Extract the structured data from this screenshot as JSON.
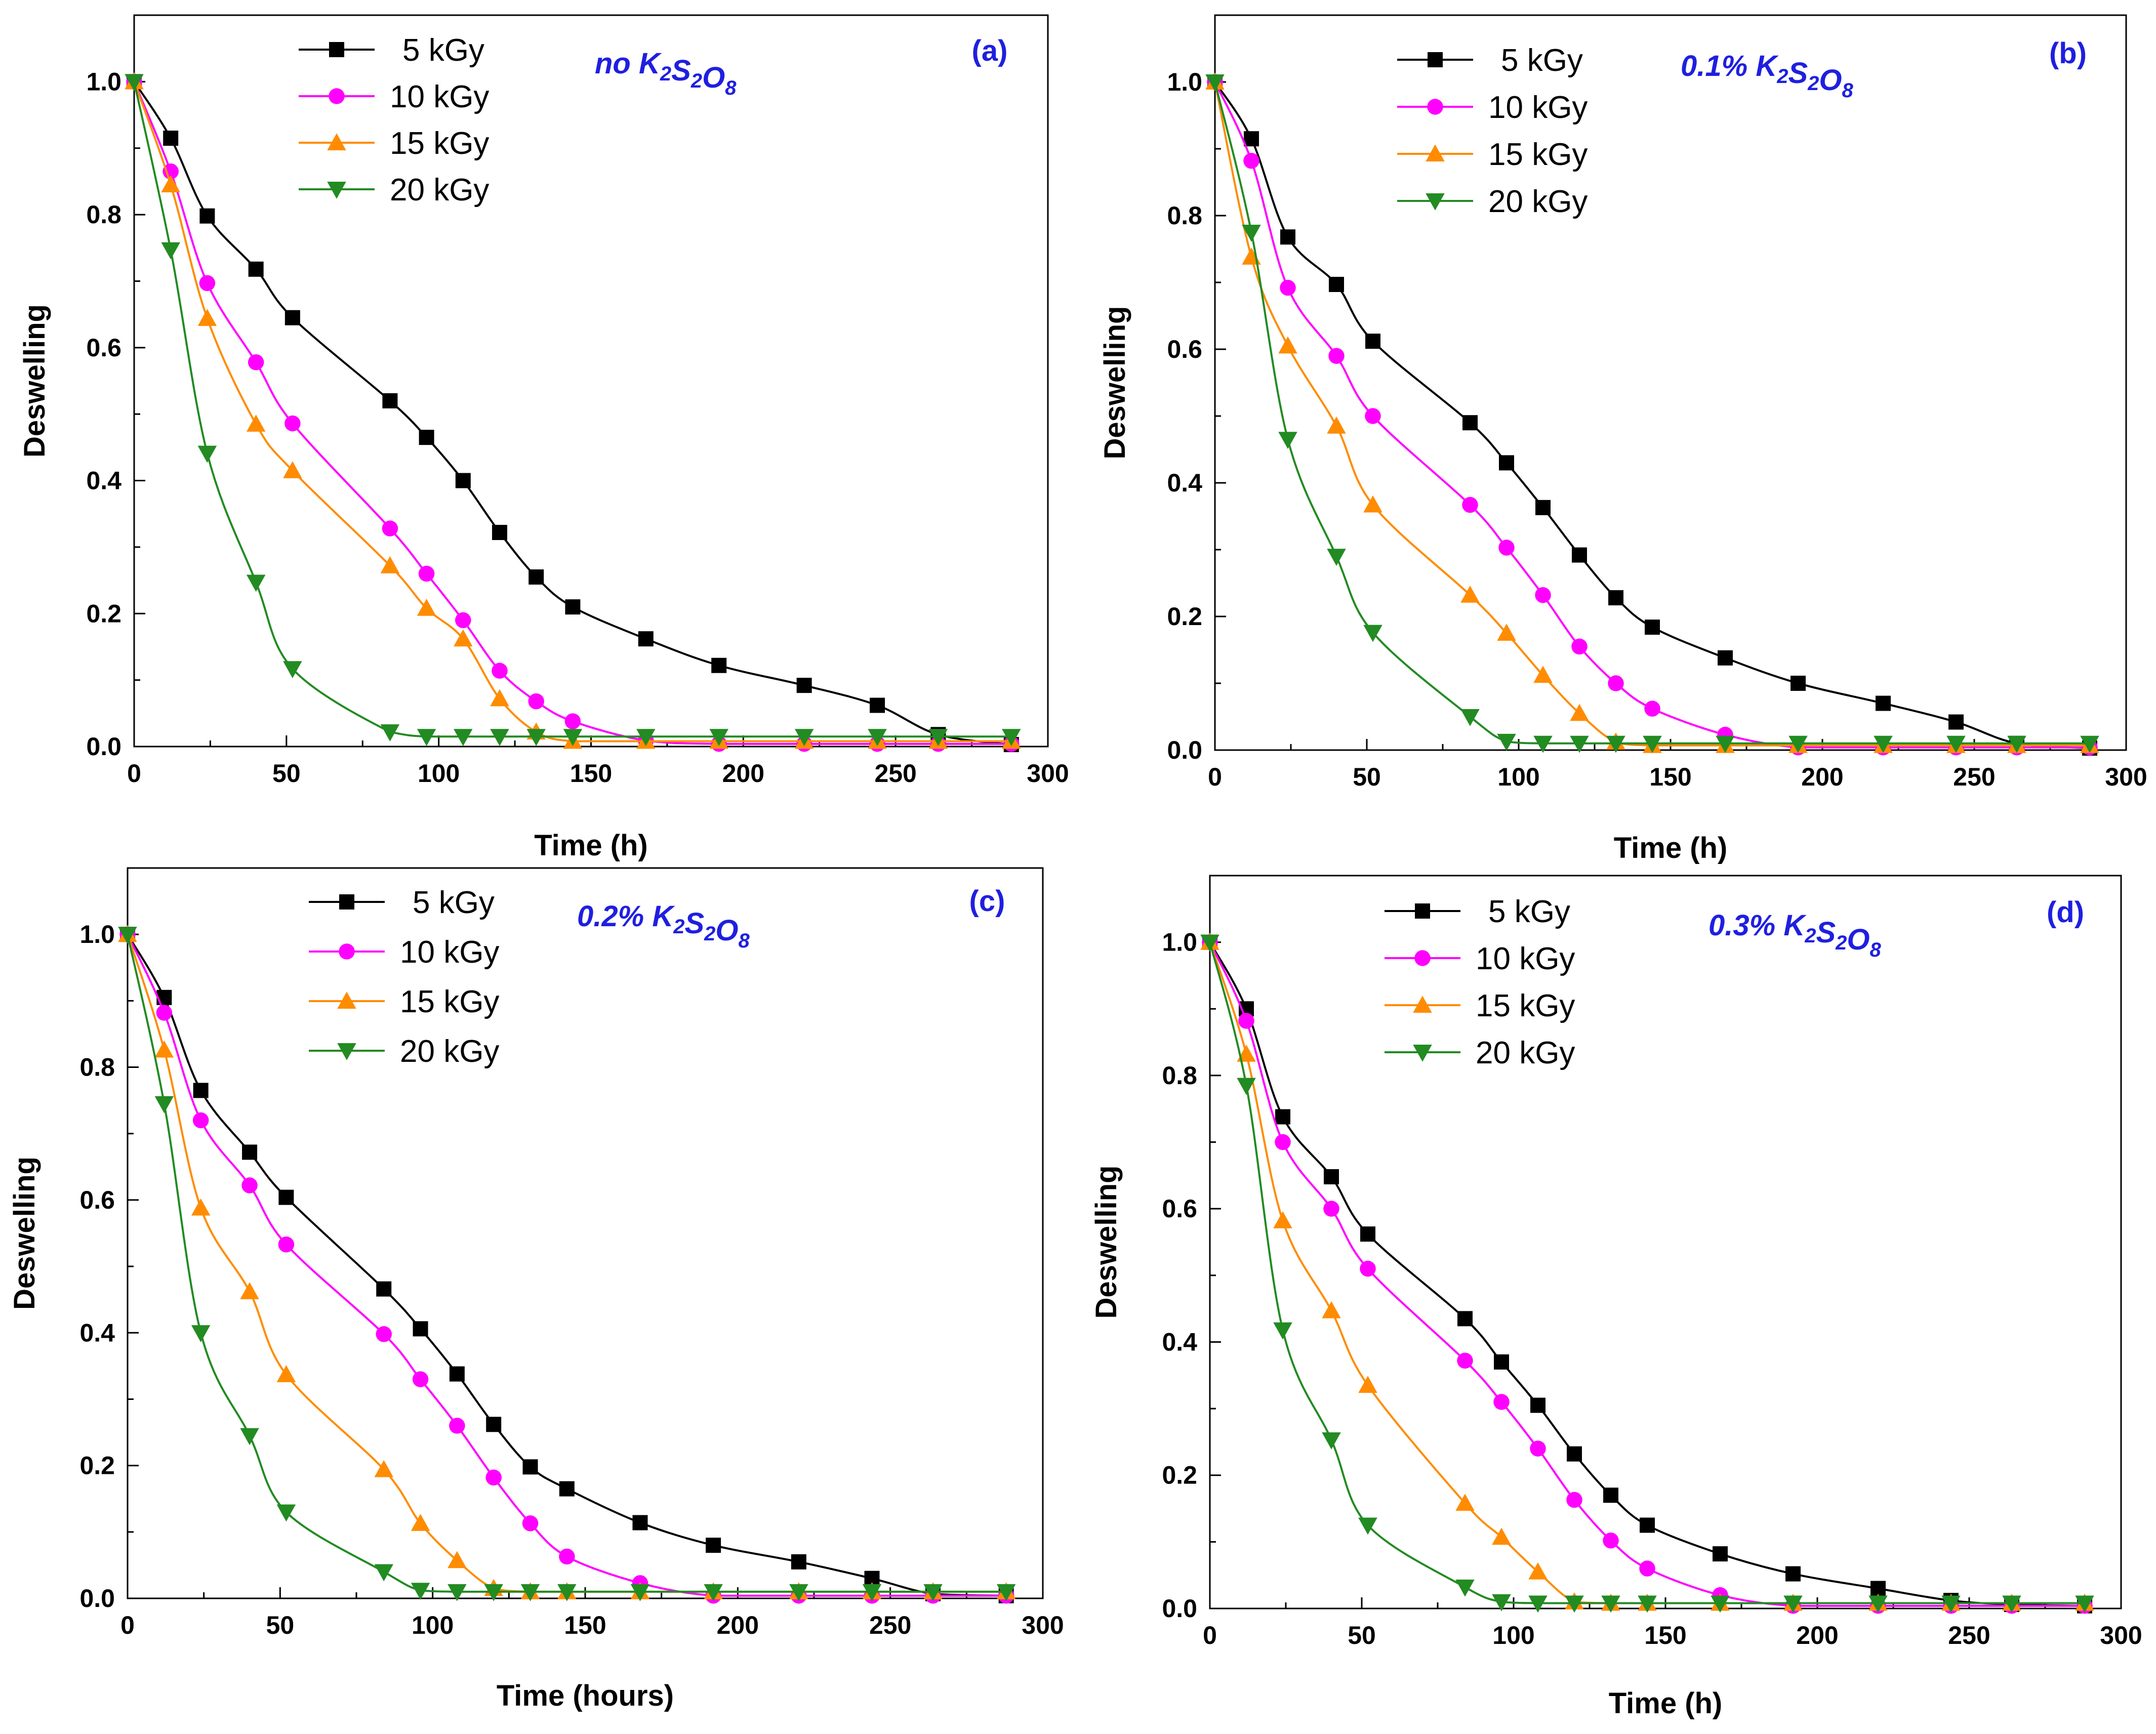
{
  "chart_data": [
    {
      "type": "line",
      "panel_label": "(a)",
      "annotation": {
        "prefix": "no ",
        "parts": [
          [
            "K",
            "2"
          ],
          [
            "S",
            "2"
          ],
          [
            "O",
            "8"
          ]
        ]
      },
      "xlabel": "Time (h)",
      "ylabel": "Deswelling",
      "xlim": [
        0,
        300
      ],
      "ylim": [
        0,
        1.1
      ],
      "xticks": [
        0,
        50,
        100,
        150,
        200,
        250,
        300
      ],
      "yticks": [
        0.0,
        0.2,
        0.4,
        0.6,
        0.8,
        1.0
      ],
      "xtick_labels": [
        "0",
        "50",
        "100",
        "150",
        "200",
        "250",
        "300"
      ],
      "ytick_labels": [
        "0.0",
        "0.2",
        "0.4",
        "0.6",
        "0.8",
        "1.0"
      ],
      "legend_position": "top-left",
      "x": [
        0,
        12,
        24,
        40,
        52,
        84,
        96,
        108,
        120,
        132,
        144,
        168,
        192,
        220,
        244,
        264,
        288
      ],
      "series": [
        {
          "name": "5 kGy",
          "color": "#000000",
          "marker": "square",
          "values": [
            1.0,
            0.915,
            0.798,
            0.718,
            0.645,
            0.52,
            0.465,
            0.4,
            0.322,
            0.255,
            0.21,
            0.162,
            0.122,
            0.092,
            0.062,
            0.018,
            0.003
          ]
        },
        {
          "name": "10 kGy",
          "color": "#ff00ff",
          "marker": "circle",
          "values": [
            1.0,
            0.865,
            0.697,
            0.578,
            0.486,
            0.328,
            0.26,
            0.19,
            0.114,
            0.068,
            0.038,
            0.009,
            0.004,
            0.004,
            0.004,
            0.004,
            0.004
          ]
        },
        {
          "name": "15 kGy",
          "color": "#ff8c00",
          "marker": "triangle-up",
          "values": [
            1.0,
            0.845,
            0.644,
            0.485,
            0.415,
            0.272,
            0.208,
            0.162,
            0.072,
            0.022,
            0.008,
            0.008,
            0.008,
            0.008,
            0.008,
            0.008,
            0.008
          ]
        },
        {
          "name": "20 kGy",
          "color": "#228b22",
          "marker": "triangle-down",
          "values": [
            1.0,
            0.747,
            0.441,
            0.247,
            0.117,
            0.022,
            0.015,
            0.015,
            0.015,
            0.015,
            0.015,
            0.015,
            0.015,
            0.015,
            0.015,
            0.015,
            0.015
          ]
        }
      ]
    },
    {
      "type": "line",
      "panel_label": "(b)",
      "annotation": {
        "prefix": "0.1% ",
        "parts": [
          [
            "K",
            "2"
          ],
          [
            "S",
            "2"
          ],
          [
            "O",
            "8"
          ]
        ]
      },
      "xlabel": "Time (h)",
      "ylabel": "Deswelling",
      "xlim": [
        0,
        300
      ],
      "ylim": [
        0,
        1.1
      ],
      "xticks": [
        0,
        50,
        100,
        150,
        200,
        250,
        300
      ],
      "yticks": [
        0.0,
        0.2,
        0.4,
        0.6,
        0.8,
        1.0
      ],
      "xtick_labels": [
        "0",
        "50",
        "100",
        "150",
        "200",
        "250",
        "300"
      ],
      "ytick_labels": [
        "0.0",
        "0.2",
        "0.4",
        "0.6",
        "0.8",
        "1.0"
      ],
      "legend_position": "top-left",
      "x": [
        0,
        12,
        24,
        40,
        52,
        84,
        96,
        108,
        120,
        132,
        144,
        168,
        192,
        220,
        244,
        264,
        288
      ],
      "series": [
        {
          "name": "5 kGy",
          "color": "#000000",
          "marker": "square",
          "values": [
            1.0,
            0.915,
            0.768,
            0.697,
            0.612,
            0.49,
            0.43,
            0.363,
            0.292,
            0.228,
            0.184,
            0.138,
            0.1,
            0.07,
            0.042,
            0.01,
            0.003
          ]
        },
        {
          "name": "10 kGy",
          "color": "#ff00ff",
          "marker": "circle",
          "values": [
            1.0,
            0.882,
            0.692,
            0.59,
            0.5,
            0.367,
            0.303,
            0.232,
            0.155,
            0.1,
            0.062,
            0.023,
            0.004,
            0.004,
            0.004,
            0.004,
            0.004
          ]
        },
        {
          "name": "15 kGy",
          "color": "#ff8c00",
          "marker": "triangle-up",
          "values": [
            1.0,
            0.738,
            0.605,
            0.485,
            0.367,
            0.232,
            0.175,
            0.112,
            0.055,
            0.012,
            0.007,
            0.007,
            0.007,
            0.007,
            0.007,
            0.007,
            0.007
          ]
        },
        {
          "name": "20 kGy",
          "color": "#228b22",
          "marker": "triangle-down",
          "values": [
            1.0,
            0.775,
            0.465,
            0.29,
            0.176,
            0.05,
            0.013,
            0.01,
            0.01,
            0.01,
            0.01,
            0.01,
            0.01,
            0.01,
            0.01,
            0.01,
            0.01
          ]
        }
      ]
    },
    {
      "type": "line",
      "panel_label": "(c)",
      "annotation": {
        "prefix": "0.2% ",
        "parts": [
          [
            "K",
            "2"
          ],
          [
            "S",
            "2"
          ],
          [
            "O",
            "8"
          ]
        ]
      },
      "xlabel": "Time (hours)",
      "ylabel": "Deswelling",
      "xlim": [
        0,
        300
      ],
      "ylim": [
        0,
        1.1
      ],
      "xticks": [
        0,
        50,
        100,
        150,
        200,
        250,
        300
      ],
      "yticks": [
        0.0,
        0.2,
        0.4,
        0.6,
        0.8,
        1.0
      ],
      "xtick_labels": [
        "0",
        "50",
        "100",
        "150",
        "200",
        "250",
        "300"
      ],
      "ytick_labels": [
        "0.0",
        "0.2",
        "0.4",
        "0.6",
        "0.8",
        "1.0"
      ],
      "legend_position": "top-left",
      "x": [
        0,
        12,
        24,
        40,
        52,
        84,
        96,
        108,
        120,
        132,
        144,
        168,
        192,
        220,
        244,
        264,
        288
      ],
      "series": [
        {
          "name": "5 kGy",
          "color": "#000000",
          "marker": "square",
          "values": [
            1.0,
            0.905,
            0.765,
            0.672,
            0.604,
            0.466,
            0.406,
            0.338,
            0.262,
            0.198,
            0.165,
            0.114,
            0.08,
            0.055,
            0.03,
            0.007,
            0.004
          ]
        },
        {
          "name": "10 kGy",
          "color": "#ff00ff",
          "marker": "circle",
          "values": [
            1.0,
            0.882,
            0.72,
            0.622,
            0.533,
            0.398,
            0.33,
            0.26,
            0.182,
            0.113,
            0.063,
            0.023,
            0.004,
            0.004,
            0.004,
            0.004,
            0.004
          ]
        },
        {
          "name": "15 kGy",
          "color": "#ff8c00",
          "marker": "triangle-up",
          "values": [
            1.0,
            0.826,
            0.588,
            0.462,
            0.337,
            0.194,
            0.113,
            0.057,
            0.015,
            0.01,
            0.01,
            0.01,
            0.01,
            0.01,
            0.01,
            0.01,
            0.01
          ]
        },
        {
          "name": "20 kGy",
          "color": "#228b22",
          "marker": "triangle-down",
          "values": [
            1.0,
            0.745,
            0.4,
            0.245,
            0.13,
            0.04,
            0.012,
            0.01,
            0.01,
            0.01,
            0.01,
            0.01,
            0.01,
            0.01,
            0.01,
            0.01,
            0.01
          ]
        }
      ]
    },
    {
      "type": "line",
      "panel_label": "(d)",
      "annotation": {
        "prefix": "0.3% ",
        "parts": [
          [
            "K",
            "2"
          ],
          [
            "S",
            "2"
          ],
          [
            "O",
            "8"
          ]
        ]
      },
      "xlabel": "Time (h)",
      "ylabel": "Deswelling",
      "xlim": [
        0,
        300
      ],
      "ylim": [
        0,
        1.1
      ],
      "xticks": [
        0,
        50,
        100,
        150,
        200,
        250,
        300
      ],
      "yticks": [
        0.0,
        0.2,
        0.4,
        0.6,
        0.8,
        1.0
      ],
      "xtick_labels": [
        "0",
        "50",
        "100",
        "150",
        "200",
        "250",
        "300"
      ],
      "ytick_labels": [
        "0.0",
        "0.2",
        "0.4",
        "0.6",
        "0.8",
        "1.0"
      ],
      "legend_position": "top-left",
      "x": [
        0,
        12,
        24,
        40,
        52,
        84,
        96,
        108,
        120,
        132,
        144,
        168,
        192,
        220,
        244,
        264,
        288
      ],
      "series": [
        {
          "name": "5 kGy",
          "color": "#000000",
          "marker": "square",
          "values": [
            1.0,
            0.9,
            0.738,
            0.648,
            0.562,
            0.435,
            0.37,
            0.305,
            0.232,
            0.17,
            0.125,
            0.082,
            0.052,
            0.03,
            0.012,
            0.006,
            0.004
          ]
        },
        {
          "name": "10 kGy",
          "color": "#ff00ff",
          "marker": "circle",
          "values": [
            1.0,
            0.882,
            0.7,
            0.6,
            0.51,
            0.372,
            0.31,
            0.24,
            0.163,
            0.102,
            0.06,
            0.02,
            0.004,
            0.004,
            0.004,
            0.004,
            0.004
          ]
        },
        {
          "name": "15 kGy",
          "color": "#ff8c00",
          "marker": "triangle-up",
          "values": [
            1.0,
            0.832,
            0.582,
            0.447,
            0.335,
            0.158,
            0.107,
            0.055,
            0.01,
            0.008,
            0.008,
            0.008,
            0.008,
            0.008,
            0.008,
            0.008,
            0.008
          ]
        },
        {
          "name": "20 kGy",
          "color": "#228b22",
          "marker": "triangle-down",
          "values": [
            1.0,
            0.785,
            0.418,
            0.253,
            0.125,
            0.032,
            0.01,
            0.008,
            0.008,
            0.008,
            0.008,
            0.008,
            0.008,
            0.008,
            0.008,
            0.008,
            0.008
          ]
        }
      ]
    }
  ]
}
